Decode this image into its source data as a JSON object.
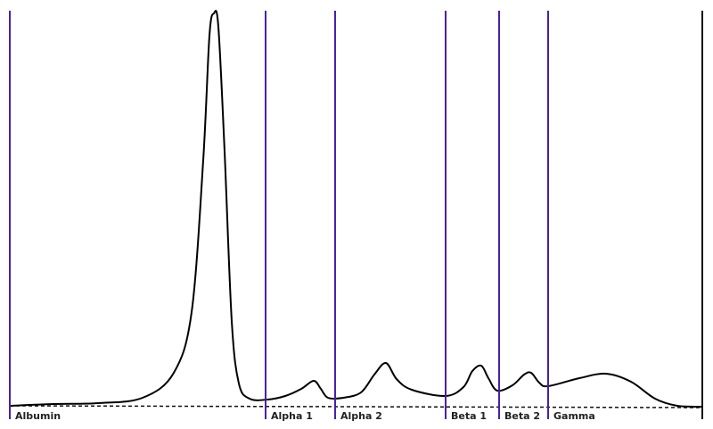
{
  "fractions": [
    {
      "label": "Albumin"
    },
    {
      "label": "Alpha 1"
    },
    {
      "label": "Alpha 2"
    },
    {
      "label": "Beta 1"
    },
    {
      "label": "Beta 2"
    },
    {
      "label": "Gamma"
    }
  ]
}
